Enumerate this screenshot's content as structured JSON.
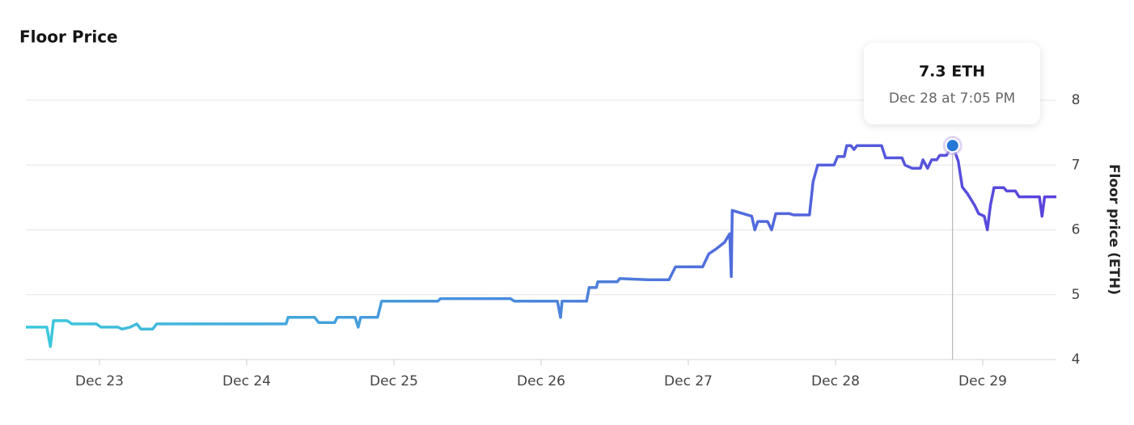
{
  "chart_data": {
    "type": "line",
    "title": "Floor Price",
    "ylabel": "Floor price (ETH)",
    "x": [
      "Dec 22 12:00 PM",
      "Dec 22 3:25 PM",
      "Dec 22 4:00 PM",
      "Dec 22 4:30 PM",
      "Dec 22 6:45 PM",
      "Dec 22 7:30 PM",
      "Dec 22 11:30 PM",
      "Dec 23 12:15 AM",
      "Dec 23 3:00 AM",
      "Dec 23 3:40 AM",
      "Dec 23 5:00 AM",
      "Dec 23 6:05 AM",
      "Dec 23 6:45 AM",
      "Dec 23 8:40 AM",
      "Dec 23 9:20 AM",
      "Dec 24 6:25 AM",
      "Dec 24 6:45 AM",
      "Dec 24 11:05 AM",
      "Dec 24 11:45 AM",
      "Dec 24 2:20 PM",
      "Dec 24 2:45 PM",
      "Dec 24 5:40 PM",
      "Dec 24 6:10 PM",
      "Dec 24 6:35 PM",
      "Dec 24 9:20 PM",
      "Dec 24 10:00 PM",
      "Dec 25 7:10 AM",
      "Dec 25 7:35 AM",
      "Dec 25 7:00 PM",
      "Dec 25 7:40 PM",
      "Dec 26 2:40 AM",
      "Dec 26 3:10 AM",
      "Dec 26 3:25 AM",
      "Dec 26 7:25 AM",
      "Dec 26 7:50 AM",
      "Dec 26 9:00 AM",
      "Dec 26 9:15 AM",
      "Dec 26 12:25 PM",
      "Dec 26 12:50 PM",
      "Dec 26 5:25 PM",
      "Dec 26 8:50 PM",
      "Dec 26 9:55 PM",
      "Dec 27 2:20 AM",
      "Dec 27 3:20 AM",
      "Dec 27 4:35 AM",
      "Dec 27 5:55 AM",
      "Dec 27 6:45 AM",
      "Dec 27 7:00 AM",
      "Dec 27 7:10 AM",
      "Dec 27 10:20 AM",
      "Dec 27 10:50 AM",
      "Dec 27 11:20 AM",
      "Dec 27 12:55 PM",
      "Dec 27 1:35 PM",
      "Dec 27 2:15 PM",
      "Dec 27 4:30 PM",
      "Dec 27 5:10 PM",
      "Dec 27 7:45 PM",
      "Dec 27 8:20 PM",
      "Dec 27 9:05 PM",
      "Dec 27 11:45 PM",
      "Dec 28 12:20 AM",
      "Dec 28 1:25 AM",
      "Dec 28 1:50 AM",
      "Dec 28 2:30 AM",
      "Dec 28 3:00 AM",
      "Dec 28 3:30 AM",
      "Dec 28 7:30 AM",
      "Dec 28 8:10 AM",
      "Dec 28 10:50 AM",
      "Dec 28 11:20 AM",
      "Dec 28 12:30 PM",
      "Dec 28 1:50 PM",
      "Dec 28 2:15 PM",
      "Dec 28 3:00 PM",
      "Dec 28 3:40 PM",
      "Dec 28 4:30 PM",
      "Dec 28 5:00 PM",
      "Dec 28 6:05 PM",
      "Dec 28 7:05 PM",
      "Dec 28 8:00 PM",
      "Dec 28 8:40 PM",
      "Dec 28 9:30 PM",
      "Dec 28 10:40 PM",
      "Dec 28 11:20 PM",
      "Dec 29 12:15 AM",
      "Dec 29 12:45 AM",
      "Dec 29 1:15 AM",
      "Dec 29 1:50 AM",
      "Dec 29 3:25 AM",
      "Dec 29 3:55 AM",
      "Dec 29 5:20 AM",
      "Dec 29 5:55 AM",
      "Dec 29 9:15 AM",
      "Dec 29 9:40 AM",
      "Dec 29 10:05 AM",
      "Dec 29 12:00 PM"
    ],
    "series": [
      {
        "name": "Floor price",
        "gradient": [
          "#3ccadc",
          "#5a42dc"
        ],
        "values": [
          4.5,
          4.5,
          4.2,
          4.6,
          4.6,
          4.55,
          4.55,
          4.5,
          4.5,
          4.47,
          4.5,
          4.55,
          4.47,
          4.47,
          4.55,
          4.55,
          4.65,
          4.65,
          4.57,
          4.57,
          4.65,
          4.65,
          4.5,
          4.65,
          4.65,
          4.9,
          4.9,
          4.94,
          4.94,
          4.9,
          4.9,
          4.65,
          4.9,
          4.9,
          5.11,
          5.11,
          5.2,
          5.2,
          5.25,
          5.23,
          5.23,
          5.43,
          5.43,
          5.63,
          5.71,
          5.81,
          5.94,
          5.28,
          6.3,
          6.21,
          6.0,
          6.13,
          6.13,
          6.0,
          6.25,
          6.25,
          6.23,
          6.23,
          6.74,
          7.0,
          7.0,
          7.13,
          7.13,
          7.3,
          7.3,
          7.24,
          7.3,
          7.3,
          7.11,
          7.11,
          7.0,
          6.95,
          6.95,
          7.08,
          6.95,
          7.08,
          7.08,
          7.15,
          7.15,
          7.3,
          7.06,
          6.66,
          6.56,
          6.38,
          6.25,
          6.21,
          6.0,
          6.38,
          6.65,
          6.65,
          6.6,
          6.6,
          6.51,
          6.51,
          6.21,
          6.51,
          6.51
        ]
      }
    ],
    "xlim": [
      "Dec 22 12:00 PM",
      "Dec 29 12:00 PM"
    ],
    "xticks": [
      "Dec 23",
      "Dec 24",
      "Dec 25",
      "Dec 26",
      "Dec 27",
      "Dec 28",
      "Dec 29"
    ],
    "ylim": [
      4,
      8
    ],
    "yticks": [
      4,
      5,
      6,
      7,
      8
    ],
    "grid": true,
    "tooltip": {
      "x": "Dec 28 7:05 PM",
      "x_label": "Dec 28 at 7:05 PM",
      "value": 7.3,
      "value_label": "7.3 ETH"
    }
  }
}
